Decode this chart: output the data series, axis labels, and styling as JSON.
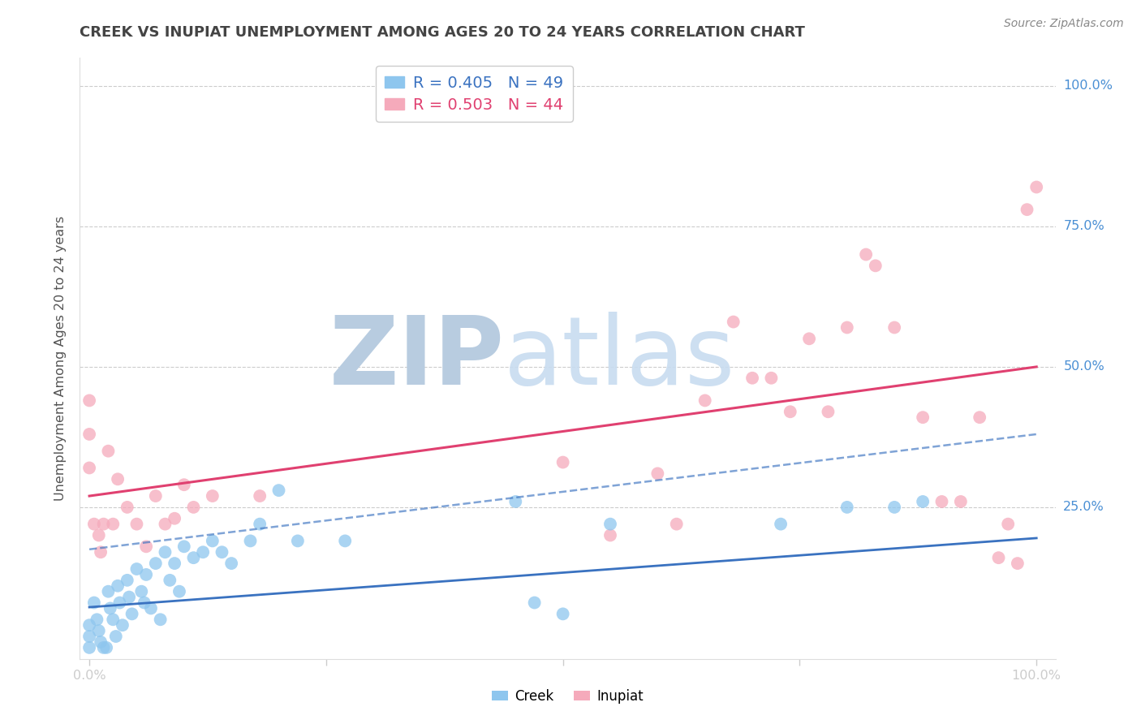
{
  "title": "CREEK VS INUPIAT UNEMPLOYMENT AMONG AGES 20 TO 24 YEARS CORRELATION CHART",
  "source": "Source: ZipAtlas.com",
  "ylabel": "Unemployment Among Ages 20 to 24 years",
  "xlim": [
    -0.01,
    1.02
  ],
  "ylim": [
    -0.02,
    1.05
  ],
  "creek_color": "#8EC6EE",
  "inupiat_color": "#F5AABB",
  "creek_line_color": "#3A72C0",
  "inupiat_line_color": "#E04070",
  "creek_R": 0.405,
  "creek_N": 49,
  "inupiat_R": 0.503,
  "inupiat_N": 44,
  "background_color": "#FFFFFF",
  "watermark_color_zip": "#B8CCE0",
  "watermark_color_atlas": "#C8DCF0",
  "grid_color": "#CCCCCC",
  "tick_color": "#4A8FD4",
  "title_color": "#444444",
  "creek_x": [
    0.0,
    0.0,
    0.0,
    0.005,
    0.008,
    0.01,
    0.012,
    0.015,
    0.018,
    0.02,
    0.022,
    0.025,
    0.028,
    0.03,
    0.032,
    0.035,
    0.04,
    0.042,
    0.045,
    0.05,
    0.055,
    0.058,
    0.06,
    0.065,
    0.07,
    0.075,
    0.08,
    0.085,
    0.09,
    0.095,
    0.1,
    0.11,
    0.12,
    0.13,
    0.14,
    0.15,
    0.17,
    0.18,
    0.2,
    0.22,
    0.27,
    0.45,
    0.47,
    0.5,
    0.55,
    0.73,
    0.8,
    0.85,
    0.88
  ],
  "creek_y": [
    0.04,
    0.02,
    0.0,
    0.08,
    0.05,
    0.03,
    0.01,
    0.0,
    0.0,
    0.1,
    0.07,
    0.05,
    0.02,
    0.11,
    0.08,
    0.04,
    0.12,
    0.09,
    0.06,
    0.14,
    0.1,
    0.08,
    0.13,
    0.07,
    0.15,
    0.05,
    0.17,
    0.12,
    0.15,
    0.1,
    0.18,
    0.16,
    0.17,
    0.19,
    0.17,
    0.15,
    0.19,
    0.22,
    0.28,
    0.19,
    0.19,
    0.26,
    0.08,
    0.06,
    0.22,
    0.22,
    0.25,
    0.25,
    0.26
  ],
  "inupiat_x": [
    0.0,
    0.0,
    0.0,
    0.005,
    0.01,
    0.012,
    0.015,
    0.02,
    0.025,
    0.03,
    0.04,
    0.05,
    0.06,
    0.07,
    0.08,
    0.09,
    0.1,
    0.11,
    0.13,
    0.18,
    0.5,
    0.55,
    0.6,
    0.62,
    0.65,
    0.68,
    0.7,
    0.72,
    0.74,
    0.76,
    0.78,
    0.8,
    0.82,
    0.83,
    0.85,
    0.88,
    0.9,
    0.92,
    0.94,
    0.96,
    0.97,
    0.98,
    0.99,
    1.0
  ],
  "inupiat_y": [
    0.44,
    0.38,
    0.32,
    0.22,
    0.2,
    0.17,
    0.22,
    0.35,
    0.22,
    0.3,
    0.25,
    0.22,
    0.18,
    0.27,
    0.22,
    0.23,
    0.29,
    0.25,
    0.27,
    0.27,
    0.33,
    0.2,
    0.31,
    0.22,
    0.44,
    0.58,
    0.48,
    0.48,
    0.42,
    0.55,
    0.42,
    0.57,
    0.7,
    0.68,
    0.57,
    0.41,
    0.26,
    0.26,
    0.41,
    0.16,
    0.22,
    0.15,
    0.78,
    0.82
  ],
  "creek_line_start_y": 0.072,
  "creek_line_end_y": 0.195,
  "inupiat_line_start_y": 0.27,
  "inupiat_line_end_y": 0.5
}
